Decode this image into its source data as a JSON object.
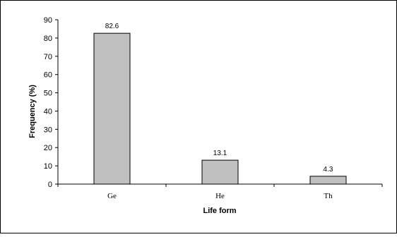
{
  "chart_data": {
    "type": "bar",
    "title": "",
    "xlabel": "Life form",
    "ylabel": "Frequency (%)",
    "categories": [
      "Ge",
      "He",
      "Th"
    ],
    "values": [
      82.6,
      13.1,
      4.3
    ],
    "data_labels": [
      "82.6",
      "13.1",
      "4.3"
    ],
    "ylim": [
      0,
      90
    ],
    "yticks": [
      0,
      10,
      20,
      30,
      40,
      50,
      60,
      70,
      80,
      90
    ],
    "ytick_labels": [
      "0",
      "10",
      "20",
      "30",
      "40",
      "50",
      "60",
      "70",
      "80",
      "90"
    ],
    "grid": false,
    "legend": "none",
    "colors": {
      "bar_fill": "#c0c0c0",
      "bar_stroke": "#000000",
      "axis": "#000000",
      "frame": "#000000"
    }
  }
}
